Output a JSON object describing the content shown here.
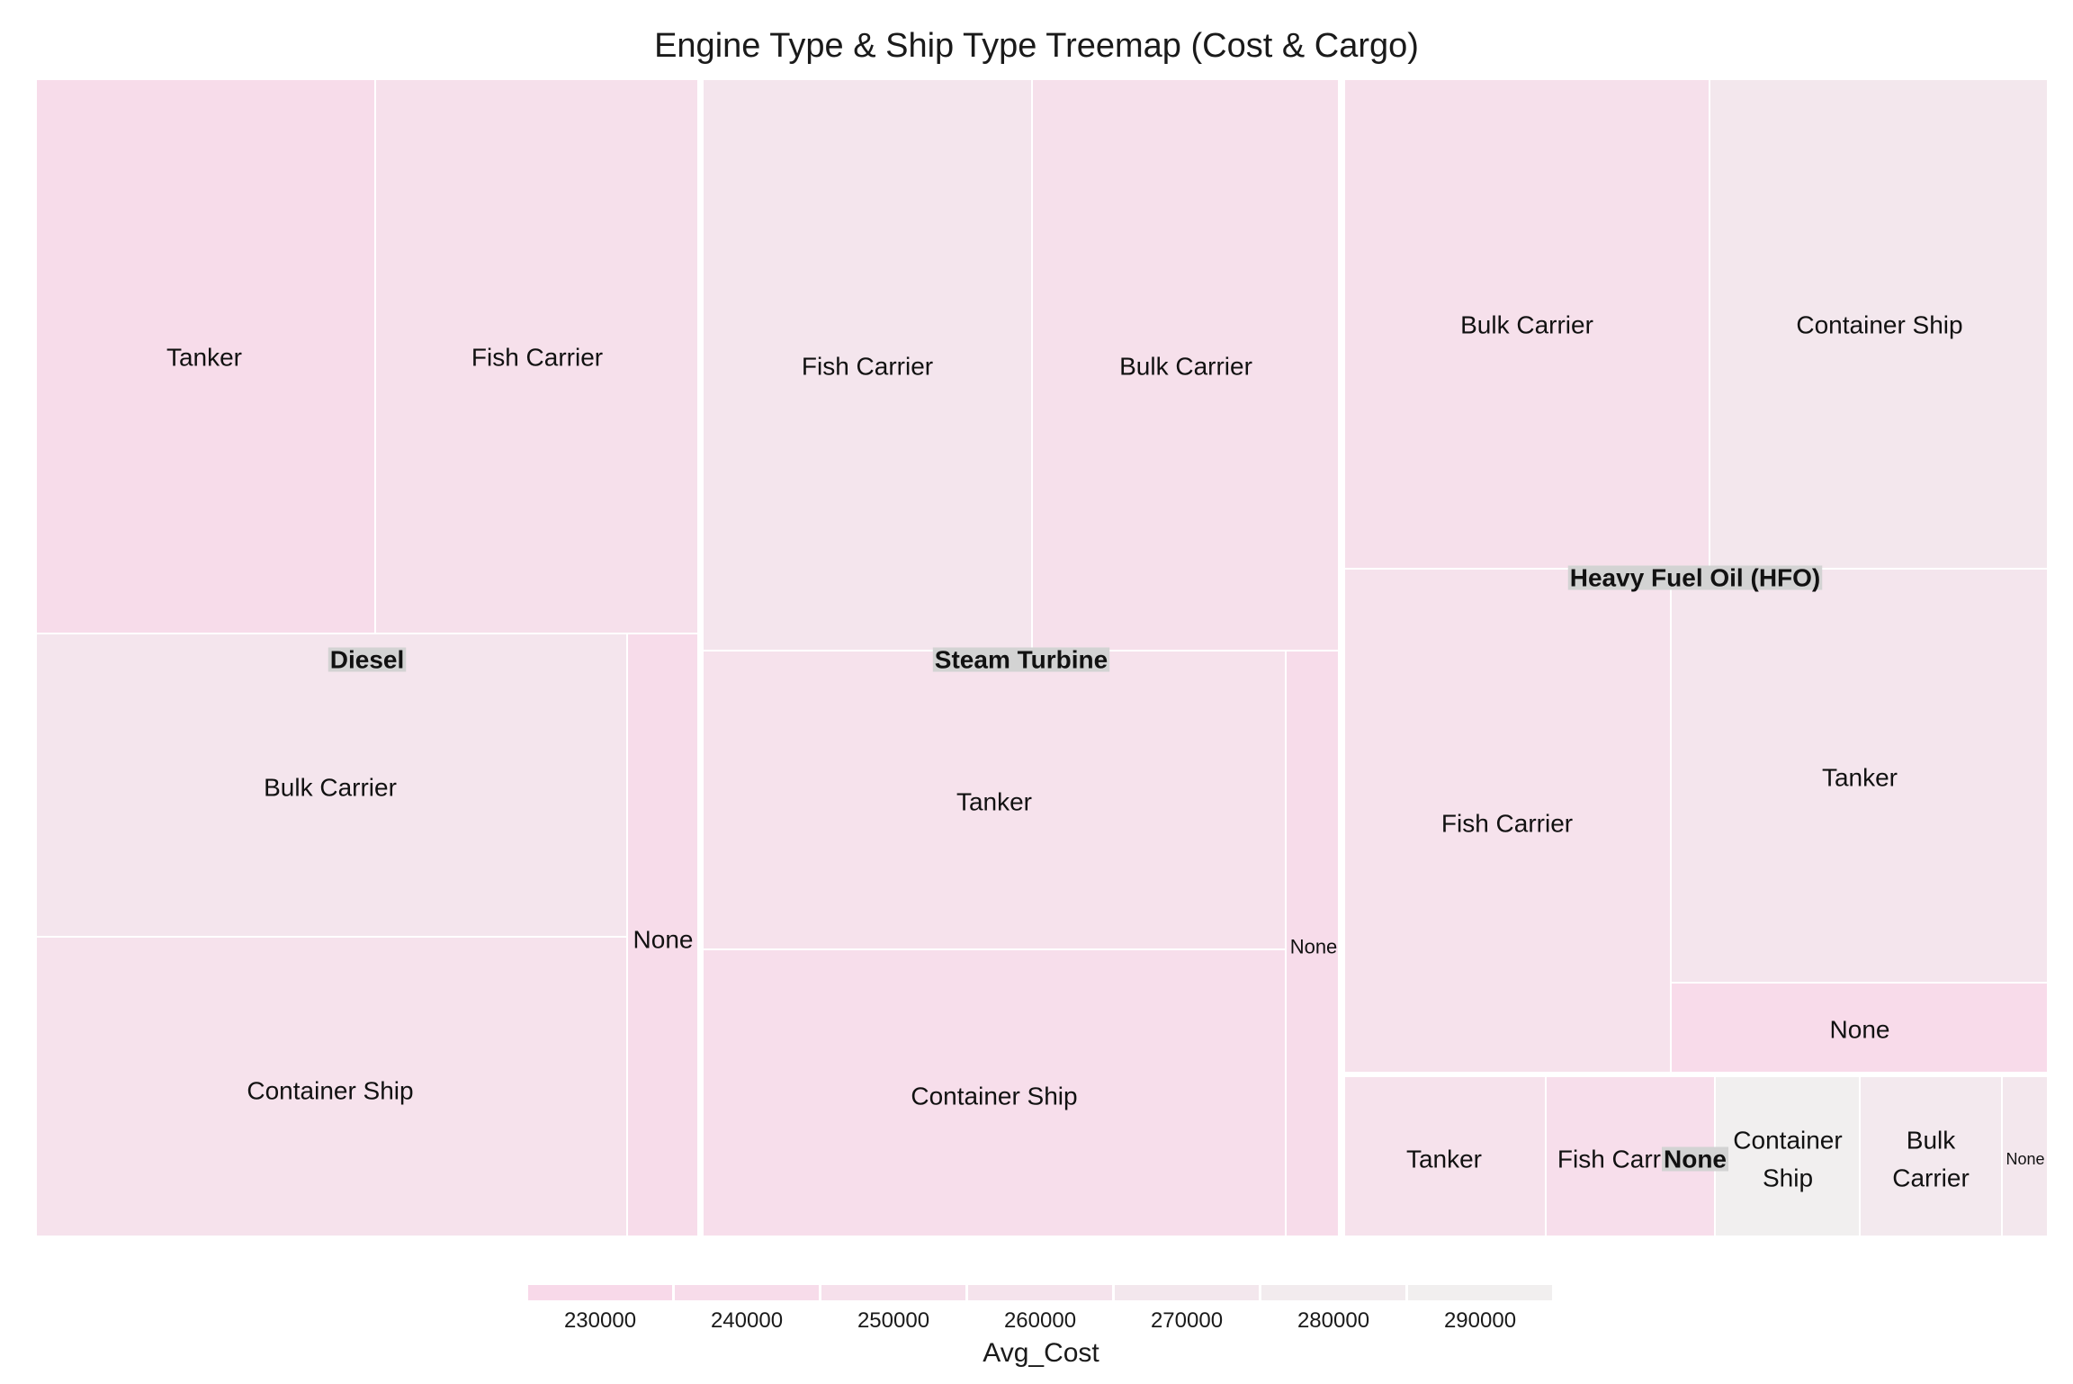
{
  "chart_data": {
    "type": "treemap",
    "title": "Engine Type & Ship Type Treemap (Cost & Cargo)",
    "fill_variable": "Avg_Cost",
    "size_variable": "Cargo",
    "groups": [
      {
        "name": "Diesel",
        "children": [
          {
            "name": "Tanker",
            "avg_cost": 240000
          },
          {
            "name": "Fish Carrier",
            "avg_cost": 250000
          },
          {
            "name": "Bulk Carrier",
            "avg_cost": 265000
          },
          {
            "name": "Container Ship",
            "avg_cost": 255000
          },
          {
            "name": "None",
            "avg_cost": 240000
          }
        ]
      },
      {
        "name": "Steam Turbine",
        "children": [
          {
            "name": "Fish Carrier",
            "avg_cost": 265000
          },
          {
            "name": "Bulk Carrier",
            "avg_cost": 250000
          },
          {
            "name": "Tanker",
            "avg_cost": 255000
          },
          {
            "name": "Container Ship",
            "avg_cost": 245000
          },
          {
            "name": "None",
            "avg_cost": 240000
          }
        ]
      },
      {
        "name": "Heavy Fuel Oil (HFO)",
        "children": [
          {
            "name": "Bulk Carrier",
            "avg_cost": 250000
          },
          {
            "name": "Container Ship",
            "avg_cost": 270000
          },
          {
            "name": "Fish Carrier",
            "avg_cost": 255000
          },
          {
            "name": "Tanker",
            "avg_cost": 265000
          },
          {
            "name": "None",
            "avg_cost": 235000
          }
        ]
      },
      {
        "name": "None",
        "children": [
          {
            "name": "Tanker",
            "avg_cost": 255000
          },
          {
            "name": "Fish Carrier",
            "avg_cost": 245000
          },
          {
            "name": "Container Ship",
            "avg_cost": 292000
          },
          {
            "name": "Bulk Carrier",
            "avg_cost": 275000
          },
          {
            "name": "None",
            "avg_cost": 270000
          }
        ]
      }
    ],
    "legend": {
      "title": "Avg_Cost",
      "position": "bottom",
      "breaks": [
        230000,
        240000,
        250000,
        260000,
        270000,
        280000,
        290000
      ],
      "colors": [
        "#f8d9e9",
        "#f7dcea",
        "#f6e0eb",
        "#f5e3ec",
        "#f3e7ed",
        "#f2ebee",
        "#f1efef"
      ]
    }
  }
}
